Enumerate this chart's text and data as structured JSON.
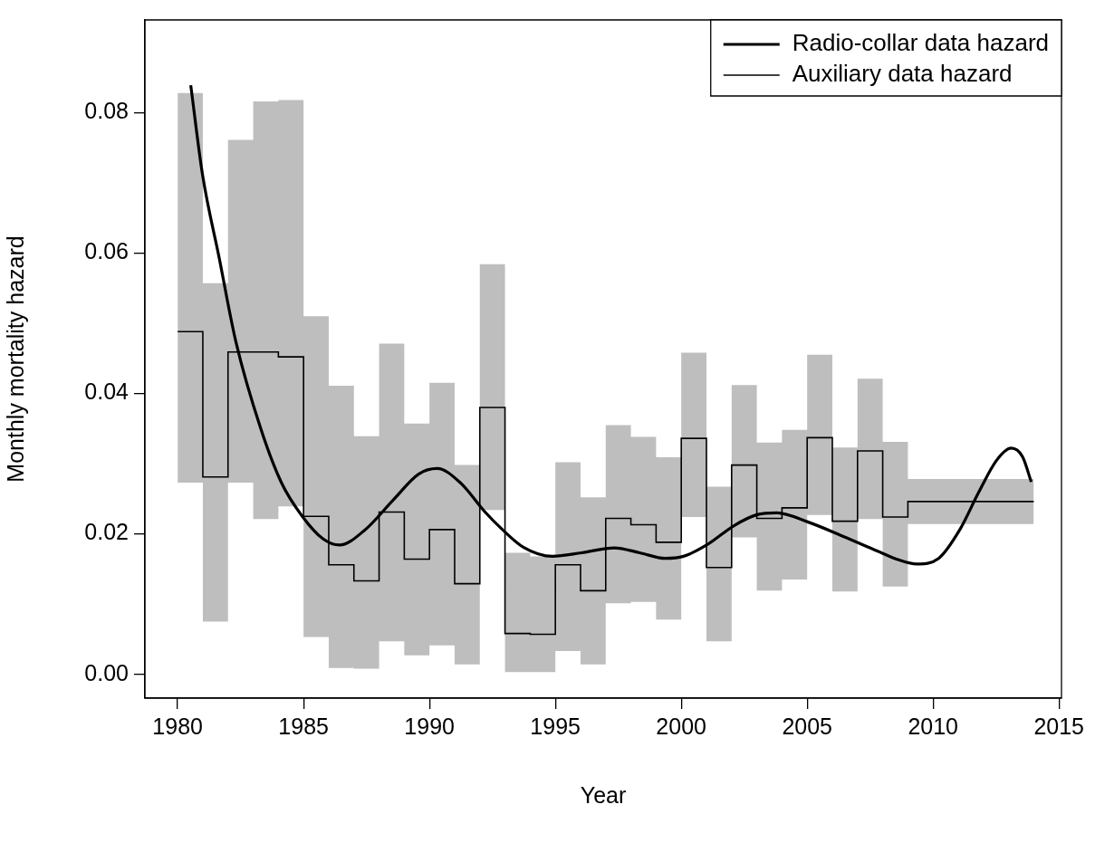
{
  "chart_data": {
    "type": "line",
    "xlabel": "Year",
    "ylabel": "Monthly mortality hazard",
    "xlim": [
      1978.7,
      2015.1
    ],
    "ylim": [
      -0.0034,
      0.0932
    ],
    "xticks": [
      1980,
      1985,
      1990,
      1995,
      2000,
      2005,
      2010,
      2015
    ],
    "yticks": [
      {
        "value": 0,
        "label": "0.00"
      },
      {
        "value": 0.02,
        "label": "0.02"
      },
      {
        "value": 0.04,
        "label": "0.04"
      },
      {
        "value": 0.06,
        "label": "0.06"
      },
      {
        "value": 0.08,
        "label": "0.08"
      }
    ],
    "legend": "top right",
    "series": [
      {
        "name": "Radio-collar data hazard",
        "type": "line",
        "color": "#000000",
        "x": [
          1980.52,
          1980.99,
          1981.65,
          1982.31,
          1983.3,
          1984.12,
          1984.95,
          1985.77,
          1986.43,
          1987.42,
          1988.58,
          1989.57,
          1990.31,
          1991.22,
          1992.21,
          1992.87,
          1993.73,
          1994.89,
          1996.04,
          1997.34,
          1998.35,
          1999.37,
          2000.09,
          2000.96,
          2002.11,
          2002.98,
          2003.8,
          2005.02,
          2006.46,
          2007.76,
          2008.63,
          2009.35,
          2010.22,
          2011.08,
          2011.81,
          2012.53,
          2013.1,
          2013.55,
          2013.9
        ],
        "values": [
          0.0839,
          0.0711,
          0.0593,
          0.0474,
          0.035,
          0.0273,
          0.0225,
          0.0193,
          0.0184,
          0.0205,
          0.0249,
          0.0285,
          0.0293,
          0.0273,
          0.0231,
          0.0207,
          0.0181,
          0.0168,
          0.0173,
          0.018,
          0.0173,
          0.0165,
          0.0168,
          0.0183,
          0.0212,
          0.0227,
          0.023,
          0.0217,
          0.0196,
          0.0176,
          0.0163,
          0.0157,
          0.0165,
          0.0207,
          0.0259,
          0.0305,
          0.0322,
          0.031,
          0.0274
        ]
      },
      {
        "name": "Auxiliary data hazard",
        "type": "step",
        "color": "#000000",
        "x": [
          1980,
          1981,
          1982,
          1983,
          1984,
          1985,
          1986,
          1987,
          1988,
          1989,
          1990,
          1991,
          1992,
          1993,
          1994,
          1995,
          1996,
          1997,
          1998,
          1999,
          2000,
          2001,
          2002,
          2003,
          2004,
          2005,
          2006,
          2007,
          2008,
          2009,
          2014
        ],
        "values": [
          0.0488,
          0.0281,
          0.0459,
          0.0459,
          0.0452,
          0.0225,
          0.0156,
          0.0133,
          0.0231,
          0.0164,
          0.0206,
          0.0129,
          0.038,
          0.0058,
          0.0057,
          0.0156,
          0.0119,
          0.0222,
          0.0213,
          0.0188,
          0.0336,
          0.0152,
          0.0298,
          0.0222,
          0.0237,
          0.0337,
          0.0218,
          0.0318,
          0.0224,
          0.0246,
          0.0246
        ],
        "upper": [
          0.0828,
          0.0557,
          0.0761,
          0.0816,
          0.0818,
          0.051,
          0.0411,
          0.0339,
          0.0471,
          0.0357,
          0.0415,
          0.0298,
          0.0584,
          0.0173,
          0.0168,
          0.0302,
          0.0252,
          0.0355,
          0.0338,
          0.0309,
          0.0458,
          0.0267,
          0.0412,
          0.033,
          0.0348,
          0.0455,
          0.0323,
          0.0421,
          0.0331,
          0.0278,
          0.0278
        ],
        "lower": [
          0.0273,
          0.0075,
          0.0273,
          0.0221,
          0.0239,
          0.0053,
          0.0009,
          0.0008,
          0.0047,
          0.0027,
          0.0041,
          0.0014,
          0.0234,
          0.0003,
          0.0003,
          0.0033,
          0.0014,
          0.0101,
          0.0103,
          0.0078,
          0.0224,
          0.0047,
          0.0195,
          0.0119,
          0.0135,
          0.0227,
          0.0118,
          0.0221,
          0.0125,
          0.0214,
          0.0214
        ]
      }
    ]
  }
}
